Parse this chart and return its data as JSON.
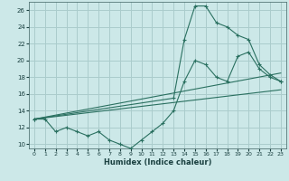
{
  "title": "",
  "xlabel": "Humidex (Indice chaleur)",
  "bg_color": "#cce8e8",
  "grid_color": "#aacccc",
  "line_color": "#2a7060",
  "xlim": [
    -0.5,
    23.5
  ],
  "ylim": [
    9.5,
    27.0
  ],
  "xticks": [
    0,
    1,
    2,
    3,
    4,
    5,
    6,
    7,
    8,
    9,
    10,
    11,
    12,
    13,
    14,
    15,
    16,
    17,
    18,
    19,
    20,
    21,
    22,
    23
  ],
  "yticks": [
    10,
    12,
    14,
    16,
    18,
    20,
    22,
    24,
    26
  ],
  "line1_x": [
    0,
    1,
    2,
    3,
    4,
    5,
    6,
    7,
    8,
    9,
    10,
    11,
    12,
    13,
    14,
    15,
    16,
    17,
    18,
    19,
    20,
    21,
    22,
    23
  ],
  "line1_y": [
    13,
    13,
    11.5,
    12,
    11.5,
    11,
    11.5,
    10.5,
    10,
    9.5,
    10.5,
    11.5,
    12.5,
    14,
    17.5,
    20,
    19.5,
    18,
    17.5,
    20.5,
    21,
    19,
    18,
    17.5
  ],
  "line2_x": [
    0,
    13,
    14,
    15,
    16,
    17,
    18,
    19,
    20,
    21,
    22,
    23
  ],
  "line2_y": [
    13,
    15.5,
    22.5,
    26.5,
    26.5,
    24.5,
    24,
    23,
    22.5,
    19.5,
    18.3,
    17.5
  ],
  "line3_x": [
    0,
    23
  ],
  "line3_y": [
    13,
    18.5
  ],
  "line4_x": [
    0,
    23
  ],
  "line4_y": [
    13,
    16.5
  ],
  "marker_size": 2.5
}
